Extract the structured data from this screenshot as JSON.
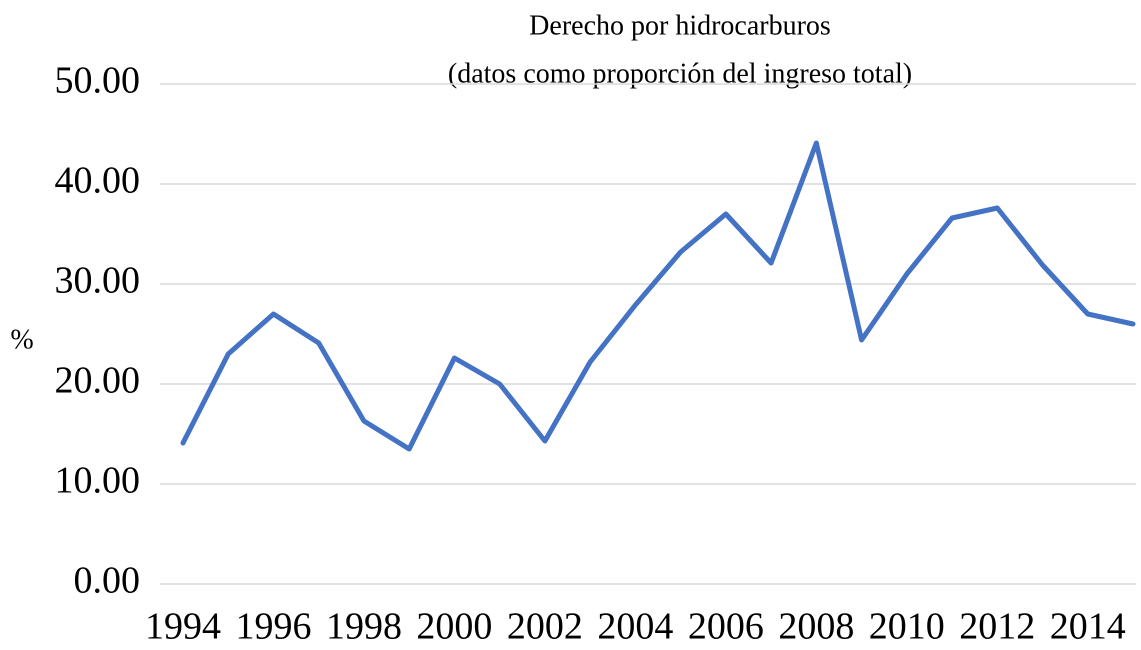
{
  "chart_data": {
    "type": "line",
    "title": "Derecho por hidrocarburos",
    "subtitle": "(datos como proporción del ingreso total)",
    "y_label": "%",
    "categories": [
      "1994",
      null,
      "1996",
      null,
      "1998",
      null,
      "2000",
      null,
      "2002",
      null,
      "2004",
      null,
      "2006",
      null,
      "2008",
      null,
      "2010",
      null,
      "2012",
      null,
      "2014",
      null
    ],
    "series": [
      {
        "name": "Derecho por hidrocarburos",
        "color": "#4472c4",
        "values": [
          14.1,
          23.0,
          27.0,
          24.1,
          16.3,
          13.5,
          22.6,
          20.0,
          14.3,
          22.2,
          27.9,
          33.2,
          37.0,
          32.1,
          44.1,
          24.4,
          31.0,
          36.6,
          37.6,
          31.9,
          27.0,
          26.0
        ]
      }
    ],
    "ylim": [
      0,
      50
    ],
    "yticks": [
      {
        "value": 0,
        "label": "0.00"
      },
      {
        "value": 10,
        "label": "10.00"
      },
      {
        "value": 20,
        "label": "20.00"
      },
      {
        "value": 30,
        "label": "30.00"
      },
      {
        "value": 40,
        "label": "40.00"
      },
      {
        "value": 50,
        "label": "50.00"
      }
    ],
    "grid": true
  }
}
